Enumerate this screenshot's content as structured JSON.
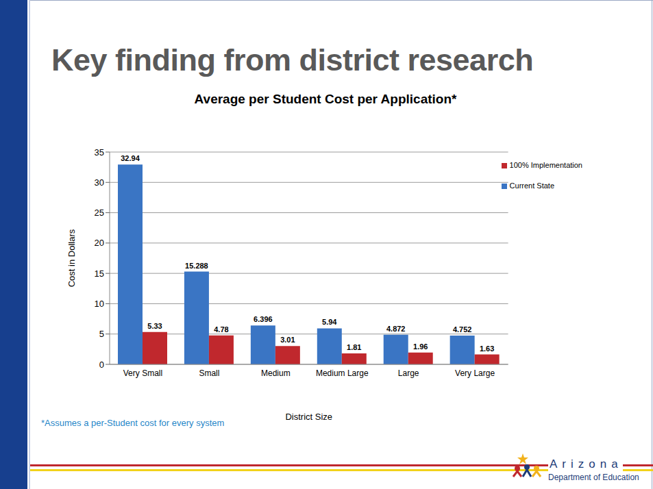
{
  "slide": {
    "heading": "Key finding from district research",
    "footnote": "*Assumes a per-Student cost for every system",
    "logo": {
      "name": "Arizona",
      "subtitle": "Department of Education"
    }
  },
  "chart_data": {
    "type": "bar",
    "title": "Average per Student Cost per Application*",
    "x_label": "District Size",
    "y_label": "Cost in Dollars",
    "categories": [
      "Very Small",
      "Small",
      "Medium",
      "Medium Large",
      "Large",
      "Very Large"
    ],
    "series": [
      {
        "name": "Current State",
        "color": "#3a75c4",
        "values": [
          32.94,
          15.288,
          6.396,
          5.94,
          4.872,
          4.752
        ]
      },
      {
        "name": "100% Implementation",
        "color": "#c0282d",
        "values": [
          5.33,
          4.78,
          3.01,
          1.81,
          1.96,
          1.63
        ]
      }
    ],
    "ylim": [
      0,
      35
    ],
    "yticks": [
      0,
      5,
      10,
      15,
      20,
      25,
      30,
      35
    ],
    "grid": true,
    "legend": "upper-right",
    "data_labels": true
  }
}
